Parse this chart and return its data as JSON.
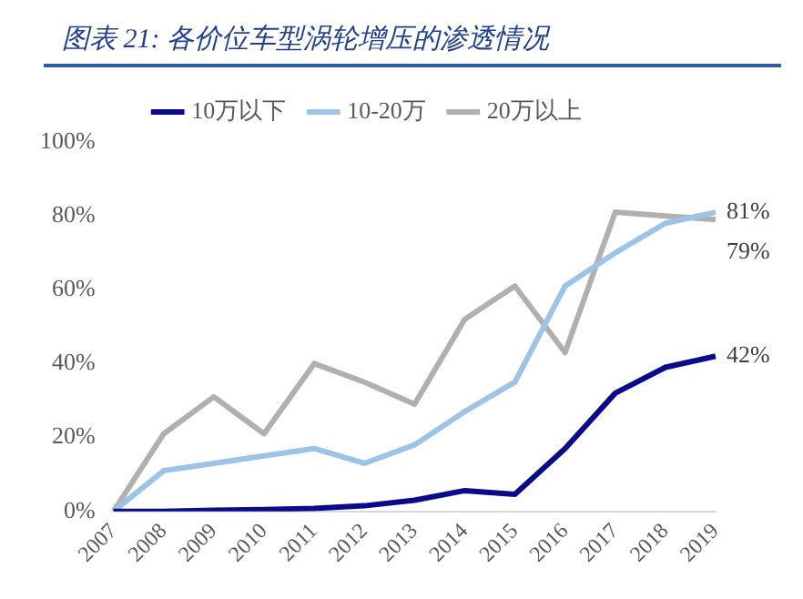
{
  "chart_data": {
    "type": "line",
    "title": "图表 21:  各价位车型涡轮增压的渗透情况",
    "categories": [
      "2007",
      "2008",
      "2009",
      "2010",
      "2011",
      "2012",
      "2013",
      "2014",
      "2015",
      "2016",
      "2017",
      "2018",
      "2019"
    ],
    "series": [
      {
        "name": "10万以下",
        "color": "#0a0a8c",
        "values": [
          0,
          0,
          0.3,
          0.5,
          0.8,
          1.5,
          3,
          5.6,
          4.6,
          17,
          32,
          39,
          42
        ],
        "value_labels": [
          null,
          null,
          null,
          null,
          null,
          null,
          null,
          null,
          null,
          null,
          null,
          null,
          "42%"
        ]
      },
      {
        "name": "10-20万",
        "color": "#9dc3e6",
        "values": [
          0,
          11,
          13,
          15,
          17,
          13,
          18,
          27,
          35,
          61,
          70,
          78,
          81
        ],
        "value_labels": [
          null,
          null,
          null,
          null,
          null,
          null,
          null,
          null,
          null,
          null,
          null,
          null,
          "81%"
        ]
      },
      {
        "name": "20万以上",
        "color": "#b0b0b0",
        "values": [
          0,
          21,
          31,
          21,
          40,
          35,
          29,
          52,
          61,
          43,
          81,
          80,
          79
        ],
        "value_labels": [
          null,
          null,
          null,
          null,
          null,
          null,
          null,
          null,
          null,
          null,
          null,
          null,
          "79%"
        ]
      }
    ],
    "ylim": [
      0,
      100
    ],
    "yticks": [
      {
        "value": 0,
        "label": "0%"
      },
      {
        "value": 20,
        "label": "20%"
      },
      {
        "value": 40,
        "label": "40%"
      },
      {
        "value": 60,
        "label": "60%"
      },
      {
        "value": 80,
        "label": "80%"
      },
      {
        "value": 100,
        "label": "100%"
      }
    ],
    "grid": false,
    "legend": "top",
    "marker": "none",
    "line_style": "solid"
  }
}
